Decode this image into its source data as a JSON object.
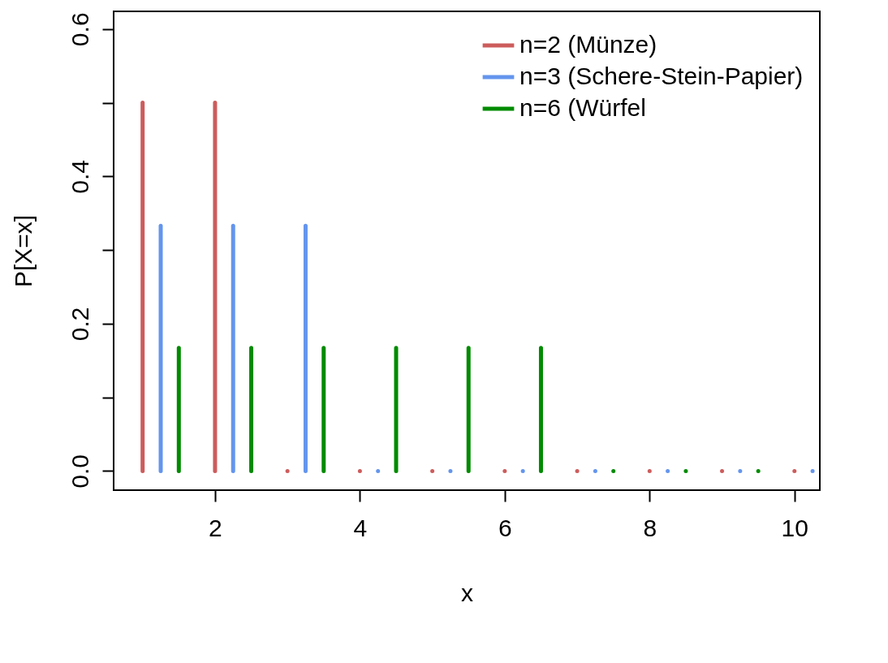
{
  "chart_data": {
    "type": "bar",
    "xlabel": "x",
    "ylabel": "P[X=x]",
    "xlim": [
      0.6,
      10.35
    ],
    "xticks": [
      2,
      4,
      6,
      8,
      10
    ],
    "ylim": [
      -0.026,
      0.624
    ],
    "yticks": [
      {
        "value": 0,
        "label": "0.0"
      },
      {
        "value": 0.1,
        "label": null
      },
      0.2,
      {
        "value": 0.3,
        "label": null
      },
      0.4,
      {
        "value": 0.5,
        "label": null
      },
      0.6
    ],
    "legend": "top right",
    "series": [
      {
        "name": "n=2 (Münze)",
        "color": "#cd5c5c",
        "x": [
          1,
          2,
          3,
          4,
          5,
          6,
          7,
          8,
          9,
          10
        ],
        "values": [
          0.5,
          0.5,
          0,
          0,
          0,
          0,
          0,
          0,
          0,
          0
        ]
      },
      {
        "name": "n=3 (Schere-Stein-Papier)",
        "color": "#6495ed",
        "x": [
          1.25,
          2.25,
          3.25,
          4.25,
          5.25,
          6.25,
          7.25,
          8.25,
          9.25,
          10.25
        ],
        "values": [
          0.333,
          0.333,
          0.333,
          0,
          0,
          0,
          0,
          0,
          0,
          0
        ]
      },
      {
        "name": "n=6 (Würfel",
        "color": "#008b00",
        "x": [
          1.5,
          2.5,
          3.5,
          4.5,
          5.5,
          6.5,
          7.5,
          8.5,
          9.5
        ],
        "values": [
          0.167,
          0.167,
          0.167,
          0.167,
          0.167,
          0.167,
          0,
          0,
          0
        ]
      }
    ]
  }
}
